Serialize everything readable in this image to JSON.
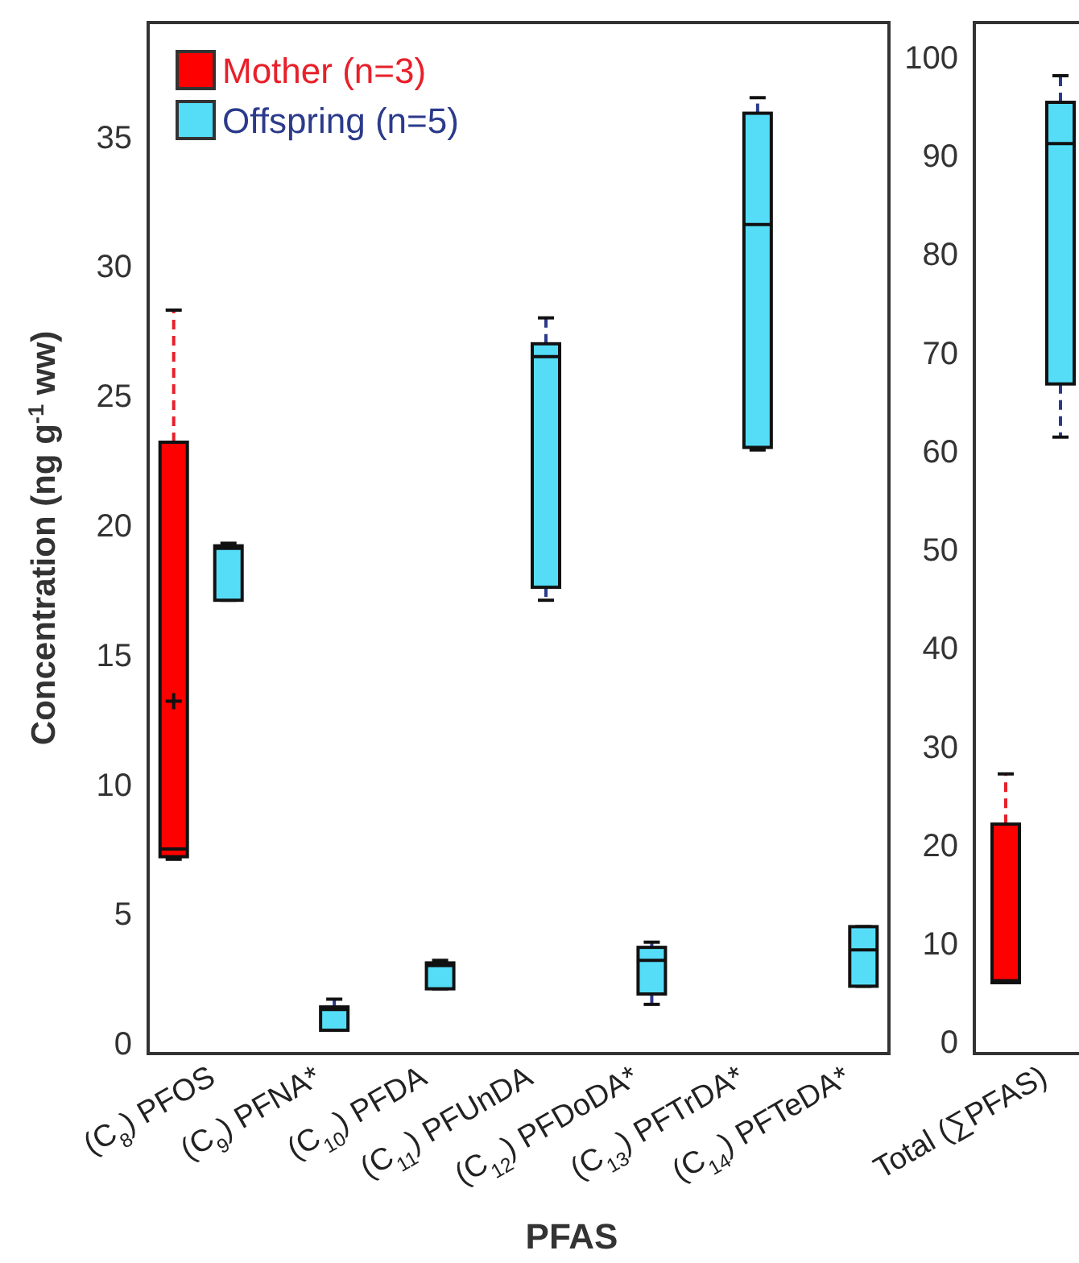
{
  "chart_data": [
    {
      "type": "box",
      "xlabel": "PFAS",
      "ylabel": "Concentration (ng g$^{-1}$ ww)",
      "categories": [
        "(C$_{8}$) PFOS",
        "(C$_{9}$) PFNA*",
        "(C$_{10}$) PFDA",
        "(C$_{11}$) PFUnDA",
        "(C$_{12}$) PFDoDA*",
        "(C$_{13}$) PFTrDA*",
        "(C$_{14}$) PFTeDA*"
      ],
      "ylim": [
        -0.4,
        39.4
      ],
      "yticks": [
        0,
        5,
        10,
        15,
        20,
        25,
        30,
        35
      ],
      "legend": "top left",
      "grid": false,
      "series": [
        {
          "name": "Mother (n=3)",
          "color": "#ff0000",
          "boxes": [
            {
              "low": 7.1,
              "q1": 7.2,
              "median": 7.5,
              "q3": 23.2,
              "high": 28.3,
              "mean": 13.2
            },
            null,
            null,
            null,
            null,
            null,
            null
          ]
        },
        {
          "name": "Offspring (n=5)",
          "color": "#55ddf8",
          "boxes": [
            {
              "low": 17.1,
              "q1": 17.1,
              "median": 19.1,
              "q3": 19.2,
              "high": 19.3
            },
            {
              "low": 0.5,
              "q1": 0.5,
              "median": 1.3,
              "q3": 1.4,
              "high": 1.7
            },
            {
              "low": 2.1,
              "q1": 2.1,
              "median": 3.0,
              "q3": 3.1,
              "high": 3.2
            },
            {
              "low": 17.1,
              "q1": 17.6,
              "median": 26.5,
              "q3": 27.0,
              "high": 28.0
            },
            {
              "low": 1.5,
              "q1": 1.9,
              "median": 3.2,
              "q3": 3.7,
              "high": 3.9
            },
            {
              "low": 22.9,
              "q1": 23.0,
              "median": 31.6,
              "q3": 35.9,
              "high": 36.5
            },
            {
              "low": 2.2,
              "q1": 2.2,
              "median": 3.6,
              "q3": 4.5,
              "high": 4.5
            }
          ]
        }
      ]
    },
    {
      "type": "box",
      "categories": [
        "Total (∑PFAS)"
      ],
      "ylim": [
        -1.2,
        103.5
      ],
      "yticks": [
        0,
        10,
        20,
        30,
        40,
        50,
        60,
        70,
        80,
        90,
        100
      ],
      "grid": false,
      "series": [
        {
          "color": "#ff0000",
          "boxes": [
            {
              "low": 6.0,
              "q1": 6.0,
              "median": 6.2,
              "q3": 22.1,
              "high": 27.2
            }
          ]
        },
        {
          "color": "#55ddf8",
          "boxes": [
            {
              "low": 61.4,
              "q1": 66.8,
              "median": 91.2,
              "q3": 95.4,
              "high": 98.1
            }
          ]
        }
      ]
    }
  ]
}
